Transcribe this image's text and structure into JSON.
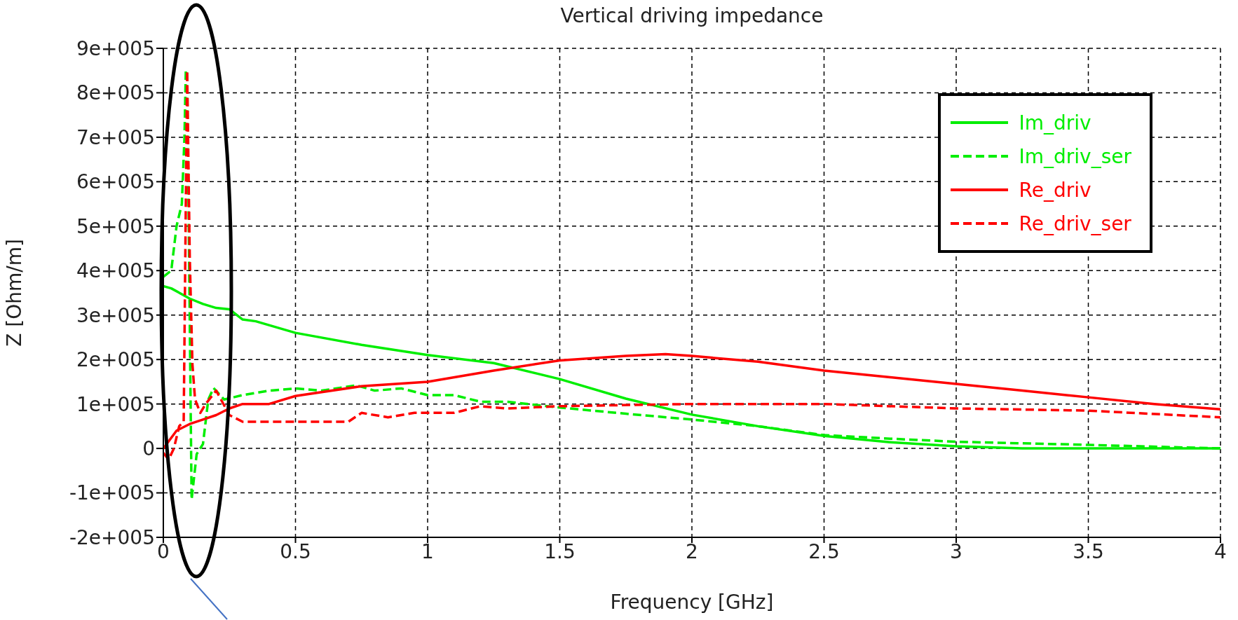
{
  "chart_data": {
    "type": "line",
    "title": "Vertical driving impedance",
    "xlabel": "Frequency [GHz]",
    "ylabel": "Z [Ohm/m]",
    "xlim": [
      0,
      4
    ],
    "xticks": [
      0,
      0.5,
      1,
      1.5,
      2,
      2.5,
      3,
      3.5,
      4
    ],
    "ylim": [
      -200000,
      900000
    ],
    "yticks": [
      {
        "value": -200000,
        "label": "-2e+005"
      },
      {
        "value": -100000,
        "label": "-1e+005"
      },
      {
        "value": 0,
        "label": "0"
      },
      {
        "value": 100000,
        "label": "1e+005"
      },
      {
        "value": 200000,
        "label": "2e+005"
      },
      {
        "value": 300000,
        "label": "3e+005"
      },
      {
        "value": 400000,
        "label": "4e+005"
      },
      {
        "value": 500000,
        "label": "5e+005"
      },
      {
        "value": 600000,
        "label": "6e+005"
      },
      {
        "value": 700000,
        "label": "7e+005"
      },
      {
        "value": 800000,
        "label": "8e+005"
      },
      {
        "value": 900000,
        "label": "9e+005"
      }
    ],
    "grid": true,
    "legend": "top right",
    "marker": "none",
    "series": [
      {
        "name": "Im_driv",
        "color": "#00ee00",
        "line_style": "solid",
        "x": [
          0,
          0.03,
          0.1,
          0.15,
          0.2,
          0.25,
          0.3,
          0.35,
          0.5,
          0.75,
          1,
          1.25,
          1.5,
          1.75,
          2,
          2.25,
          2.5,
          2.75,
          3,
          3.25,
          3.5,
          4
        ],
        "values": [
          365000,
          360000,
          337000,
          325000,
          316000,
          313000,
          290000,
          286000,
          260000,
          233000,
          210000,
          192000,
          156000,
          112000,
          76000,
          50000,
          28000,
          14000,
          5000,
          0,
          0,
          0
        ]
      },
      {
        "name": "Im_driv_ser",
        "color": "#00ee00",
        "line_style": "dashed",
        "x": [
          0,
          0.03,
          0.05,
          0.07,
          0.08,
          0.085,
          0.09,
          0.107,
          0.126,
          0.15,
          0.17,
          0.19,
          0.23,
          0.3,
          0.4,
          0.5,
          0.6,
          0.73,
          0.8,
          0.9,
          1,
          1.1,
          1.2,
          1.3,
          1.5,
          1.75,
          2,
          2.25,
          2.5,
          2.75,
          3,
          3.5,
          4
        ],
        "values": [
          386000,
          400000,
          500000,
          550000,
          700000,
          850000,
          850000,
          -115000,
          -13000,
          10000,
          110000,
          136000,
          110000,
          120000,
          130000,
          135000,
          130000,
          142000,
          130000,
          135000,
          120000,
          120000,
          105000,
          105000,
          92000,
          78000,
          65000,
          50000,
          30000,
          22000,
          15000,
          8000,
          0
        ]
      },
      {
        "name": "Re_driv",
        "color": "#ff0000",
        "line_style": "solid",
        "x": [
          0,
          0.05,
          0.1,
          0.15,
          0.2,
          0.25,
          0.3,
          0.4,
          0.5,
          0.75,
          1,
          1.25,
          1.5,
          1.75,
          1.9,
          2,
          2.25,
          2.5,
          2.75,
          3,
          3.25,
          3.5,
          3.75,
          4
        ],
        "values": [
          0,
          40000,
          55000,
          65000,
          75000,
          90000,
          100000,
          100000,
          118000,
          140000,
          150000,
          175000,
          198000,
          208000,
          212000,
          208000,
          195000,
          175000,
          160000,
          145000,
          130000,
          115000,
          100000,
          88000
        ]
      },
      {
        "name": "Re_driv_ser",
        "color": "#ff0000",
        "line_style": "dashed",
        "x": [
          0,
          0.02,
          0.04,
          0.06,
          0.077,
          0.09,
          0.1,
          0.11,
          0.12,
          0.14,
          0.16,
          0.2,
          0.25,
          0.3,
          0.5,
          0.7,
          0.75,
          0.85,
          0.95,
          1.1,
          1.2,
          1.3,
          1.5,
          2,
          2.5,
          3,
          3.5,
          4
        ],
        "values": [
          -10000,
          -25000,
          0,
          50000,
          60000,
          850000,
          430000,
          190000,
          110000,
          80000,
          100000,
          130000,
          75000,
          60000,
          60000,
          60000,
          80000,
          70000,
          80000,
          80000,
          95000,
          90000,
          95000,
          100000,
          100000,
          90000,
          85000,
          70000
        ]
      }
    ]
  }
}
